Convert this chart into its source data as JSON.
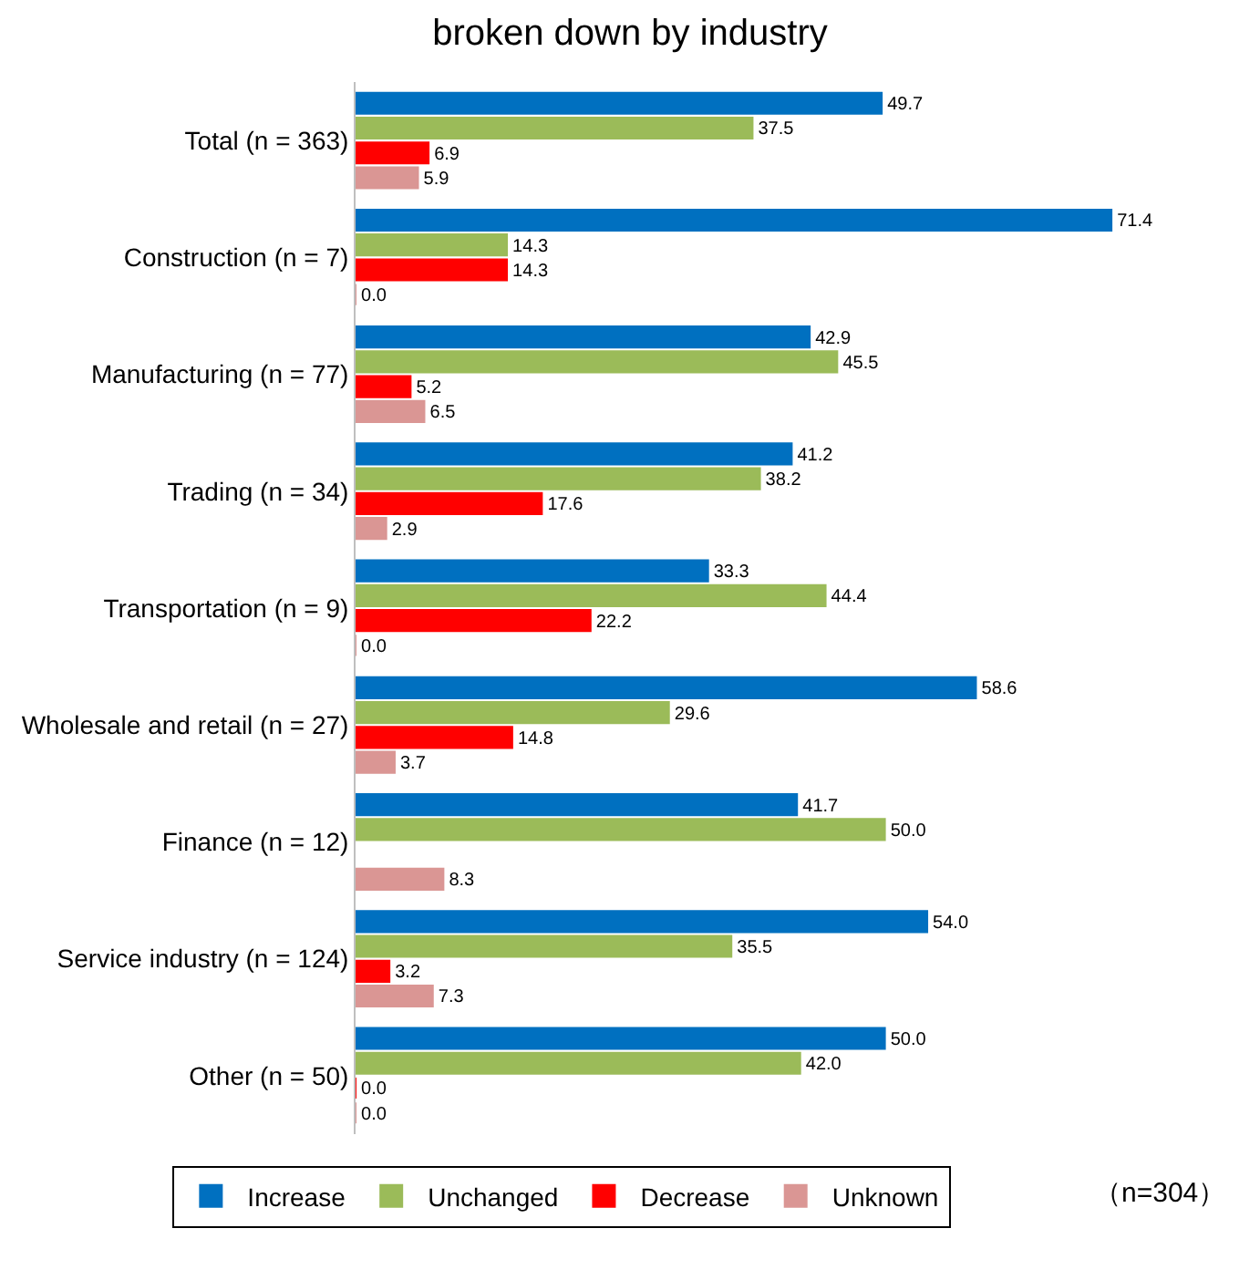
{
  "chart_data": {
    "type": "bar",
    "orientation": "horizontal",
    "title": "broken down by industry",
    "categories": [
      "Total (n = 363)",
      "Construction (n = 7)",
      "Manufacturing (n = 77)",
      "Trading (n = 34)",
      "Transportation (n = 9)",
      "Wholesale and retail (n = 27)",
      "Finance (n = 12)",
      "Service industry (n = 124)",
      "Other (n = 50)"
    ],
    "series": [
      {
        "name": "Increase",
        "color": "#0070c0",
        "values": [
          49.7,
          71.4,
          42.9,
          41.2,
          33.3,
          58.6,
          41.7,
          54.0,
          50.0
        ],
        "value_labels": [
          "49.7",
          "71.4",
          "42.9",
          "41.2",
          "33.3",
          "58.6",
          "41.7",
          "54.0",
          "50.0"
        ]
      },
      {
        "name": "Unchanged",
        "color": "#9bbb59",
        "values": [
          37.5,
          14.3,
          45.5,
          38.2,
          44.4,
          29.6,
          50.0,
          35.5,
          42.0
        ],
        "value_labels": [
          "37.5",
          "14.3",
          "45.5",
          "38.2",
          "44.4",
          "29.6",
          "50.0",
          "35.5",
          "42.0"
        ]
      },
      {
        "name": "Decrease",
        "color": "#ff0000",
        "values": [
          6.9,
          14.3,
          5.2,
          17.6,
          22.2,
          14.8,
          null,
          3.2,
          0.0
        ],
        "value_labels": [
          "6.9",
          "14.3",
          "5.2",
          "17.6",
          "22.2",
          "14.8",
          null,
          "3.2",
          "0.0"
        ]
      },
      {
        "name": "Unknown",
        "color": "#da9694",
        "values": [
          5.9,
          0.0,
          6.5,
          2.9,
          0.0,
          3.7,
          8.3,
          7.3,
          0.0
        ],
        "value_labels": [
          "5.9",
          "0.0",
          "6.5",
          "2.9",
          "0.0",
          "3.7",
          "8.3",
          "7.3",
          "0.0"
        ]
      }
    ],
    "legend": "bottom",
    "annotations": [
      "（n=304）"
    ]
  }
}
